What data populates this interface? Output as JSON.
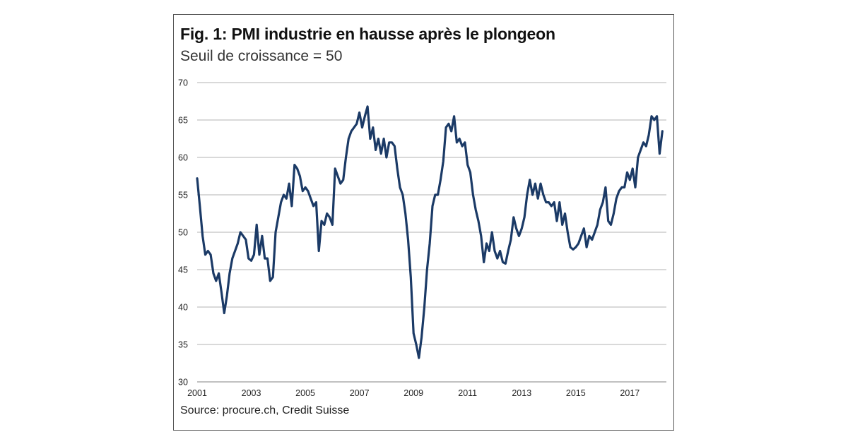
{
  "figure": {
    "title": "Fig. 1: PMI industrie en hausse après le plongeon",
    "subtitle": "Seuil de croissance = 50",
    "source": "Source: procure.ch, Credit Suisse"
  },
  "chart_data": {
    "type": "line",
    "title": "Fig. 1: PMI industrie en hausse après le plongeon",
    "subtitle": "Seuil de croissance = 50",
    "xlabel": "",
    "ylabel": "",
    "xlim": [
      2001,
      2018.35
    ],
    "ylim": [
      30,
      70
    ],
    "y_ticks": [
      30,
      35,
      40,
      45,
      50,
      55,
      60,
      65,
      70
    ],
    "x_ticks": [
      "2001",
      "2003",
      "2005",
      "2007",
      "2009",
      "2011",
      "2013",
      "2015",
      "2017"
    ],
    "grid": "horizontal",
    "legend": "none",
    "colors": {
      "line": "#1b3a66",
      "grid": "#9a9a9a"
    },
    "series": [
      {
        "points": [
          [
            2001.0,
            57.2
          ],
          [
            2001.1,
            53.5
          ],
          [
            2001.2,
            49.5
          ],
          [
            2001.3,
            47.0
          ],
          [
            2001.4,
            47.5
          ],
          [
            2001.5,
            47.0
          ],
          [
            2001.6,
            44.5
          ],
          [
            2001.7,
            43.5
          ],
          [
            2001.8,
            44.5
          ],
          [
            2001.9,
            42.0
          ],
          [
            2002.0,
            39.2
          ],
          [
            2002.1,
            41.5
          ],
          [
            2002.2,
            44.5
          ],
          [
            2002.3,
            46.5
          ],
          [
            2002.4,
            47.5
          ],
          [
            2002.5,
            48.5
          ],
          [
            2002.6,
            50.0
          ],
          [
            2002.7,
            49.5
          ],
          [
            2002.8,
            49.0
          ],
          [
            2002.9,
            46.5
          ],
          [
            2003.0,
            46.2
          ],
          [
            2003.1,
            47.0
          ],
          [
            2003.2,
            51.0
          ],
          [
            2003.3,
            47.0
          ],
          [
            2003.4,
            49.5
          ],
          [
            2003.5,
            46.5
          ],
          [
            2003.6,
            46.5
          ],
          [
            2003.7,
            43.5
          ],
          [
            2003.8,
            44.0
          ],
          [
            2003.9,
            50.0
          ],
          [
            2004.0,
            52.0
          ],
          [
            2004.1,
            54.0
          ],
          [
            2004.2,
            55.0
          ],
          [
            2004.3,
            54.5
          ],
          [
            2004.4,
            56.5
          ],
          [
            2004.5,
            53.5
          ],
          [
            2004.6,
            59.0
          ],
          [
            2004.7,
            58.5
          ],
          [
            2004.8,
            57.5
          ],
          [
            2004.9,
            55.5
          ],
          [
            2005.0,
            56.0
          ],
          [
            2005.1,
            55.5
          ],
          [
            2005.2,
            54.5
          ],
          [
            2005.3,
            53.5
          ],
          [
            2005.4,
            54.0
          ],
          [
            2005.5,
            47.5
          ],
          [
            2005.6,
            51.5
          ],
          [
            2005.7,
            51.0
          ],
          [
            2005.8,
            52.5
          ],
          [
            2005.9,
            52.0
          ],
          [
            2006.0,
            51.0
          ],
          [
            2006.1,
            58.5
          ],
          [
            2006.2,
            57.5
          ],
          [
            2006.3,
            56.5
          ],
          [
            2006.4,
            57.0
          ],
          [
            2006.5,
            60.0
          ],
          [
            2006.6,
            62.5
          ],
          [
            2006.7,
            63.5
          ],
          [
            2006.8,
            64.0
          ],
          [
            2006.9,
            64.5
          ],
          [
            2007.0,
            66.0
          ],
          [
            2007.1,
            64.0
          ],
          [
            2007.2,
            65.5
          ],
          [
            2007.3,
            66.8
          ],
          [
            2007.4,
            62.5
          ],
          [
            2007.5,
            64.0
          ],
          [
            2007.6,
            61.0
          ],
          [
            2007.7,
            62.5
          ],
          [
            2007.8,
            60.5
          ],
          [
            2007.9,
            62.5
          ],
          [
            2008.0,
            60.0
          ],
          [
            2008.1,
            62.0
          ],
          [
            2008.2,
            62.0
          ],
          [
            2008.3,
            61.5
          ],
          [
            2008.4,
            58.5
          ],
          [
            2008.5,
            56.0
          ],
          [
            2008.6,
            55.0
          ],
          [
            2008.7,
            52.5
          ],
          [
            2008.8,
            49.0
          ],
          [
            2008.9,
            44.0
          ],
          [
            2009.0,
            36.5
          ],
          [
            2009.1,
            35.0
          ],
          [
            2009.2,
            33.2
          ],
          [
            2009.3,
            36.0
          ],
          [
            2009.4,
            40.0
          ],
          [
            2009.5,
            45.0
          ],
          [
            2009.6,
            48.5
          ],
          [
            2009.7,
            53.5
          ],
          [
            2009.8,
            55.0
          ],
          [
            2009.9,
            55.0
          ],
          [
            2010.0,
            57.0
          ],
          [
            2010.1,
            59.5
          ],
          [
            2010.2,
            64.0
          ],
          [
            2010.3,
            64.5
          ],
          [
            2010.4,
            63.5
          ],
          [
            2010.5,
            65.5
          ],
          [
            2010.6,
            62.0
          ],
          [
            2010.7,
            62.5
          ],
          [
            2010.8,
            61.5
          ],
          [
            2010.9,
            62.0
          ],
          [
            2011.0,
            59.0
          ],
          [
            2011.1,
            58.0
          ],
          [
            2011.2,
            55.0
          ],
          [
            2011.3,
            53.0
          ],
          [
            2011.4,
            51.5
          ],
          [
            2011.5,
            49.5
          ],
          [
            2011.6,
            46.0
          ],
          [
            2011.7,
            48.5
          ],
          [
            2011.8,
            47.5
          ],
          [
            2011.9,
            50.0
          ],
          [
            2012.0,
            47.5
          ],
          [
            2012.1,
            46.5
          ],
          [
            2012.2,
            47.5
          ],
          [
            2012.3,
            46.0
          ],
          [
            2012.4,
            45.8
          ],
          [
            2012.5,
            47.5
          ],
          [
            2012.6,
            49.0
          ],
          [
            2012.7,
            52.0
          ],
          [
            2012.8,
            50.5
          ],
          [
            2012.9,
            49.5
          ],
          [
            2013.0,
            50.5
          ],
          [
            2013.1,
            52.0
          ],
          [
            2013.2,
            55.0
          ],
          [
            2013.3,
            57.0
          ],
          [
            2013.4,
            55.0
          ],
          [
            2013.5,
            56.5
          ],
          [
            2013.6,
            54.5
          ],
          [
            2013.7,
            56.5
          ],
          [
            2013.8,
            55.0
          ],
          [
            2013.9,
            54.0
          ],
          [
            2014.0,
            54.0
          ],
          [
            2014.1,
            53.5
          ],
          [
            2014.2,
            54.0
          ],
          [
            2014.3,
            51.5
          ],
          [
            2014.4,
            54.0
          ],
          [
            2014.5,
            51.0
          ],
          [
            2014.6,
            52.5
          ],
          [
            2014.7,
            50.0
          ],
          [
            2014.8,
            48.0
          ],
          [
            2014.9,
            47.7
          ],
          [
            2015.0,
            48.0
          ],
          [
            2015.1,
            48.5
          ],
          [
            2015.2,
            49.5
          ],
          [
            2015.3,
            50.5
          ],
          [
            2015.4,
            48.0
          ],
          [
            2015.5,
            49.5
          ],
          [
            2015.6,
            49.0
          ],
          [
            2015.7,
            50.0
          ],
          [
            2015.8,
            51.0
          ],
          [
            2015.9,
            53.0
          ],
          [
            2016.0,
            54.0
          ],
          [
            2016.1,
            56.0
          ],
          [
            2016.2,
            51.5
          ],
          [
            2016.3,
            51.0
          ],
          [
            2016.4,
            52.5
          ],
          [
            2016.5,
            54.5
          ],
          [
            2016.6,
            55.5
          ],
          [
            2016.7,
            56.0
          ],
          [
            2016.8,
            56.0
          ],
          [
            2016.9,
            58.0
          ],
          [
            2017.0,
            57.0
          ],
          [
            2017.1,
            58.5
          ],
          [
            2017.2,
            56.0
          ],
          [
            2017.3,
            60.0
          ],
          [
            2017.4,
            61.0
          ],
          [
            2017.5,
            62.0
          ],
          [
            2017.6,
            61.5
          ],
          [
            2017.7,
            63.0
          ],
          [
            2017.8,
            65.5
          ],
          [
            2017.9,
            65.0
          ],
          [
            2018.0,
            65.5
          ],
          [
            2018.1,
            60.5
          ],
          [
            2018.2,
            63.5
          ]
        ]
      }
    ]
  }
}
